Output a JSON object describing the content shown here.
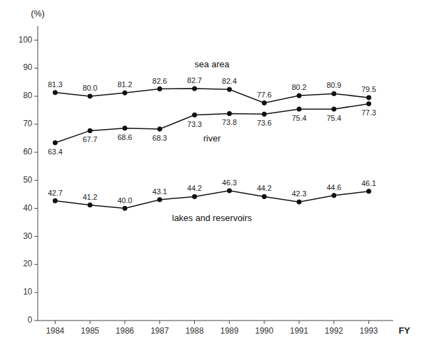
{
  "chart_data": {
    "type": "line",
    "x_label": "FY",
    "y_label": "(%)",
    "x": [
      1984,
      1985,
      1986,
      1987,
      1988,
      1989,
      1990,
      1991,
      1992,
      1993
    ],
    "xlim": [
      1983.5,
      1993.7
    ],
    "xticks": [
      1984,
      1985,
      1986,
      1987,
      1988,
      1989,
      1990,
      1991,
      1992,
      1993
    ],
    "ylim": [
      0,
      105
    ],
    "yticks": [
      0,
      10,
      20,
      30,
      40,
      50,
      60,
      70,
      80,
      90,
      100
    ],
    "grid": false,
    "data_labels": true,
    "series": [
      {
        "name": "sea area",
        "color": "#111111",
        "marker": "circle",
        "values": [
          81.3,
          80.0,
          81.2,
          82.6,
          82.7,
          82.4,
          77.6,
          80.2,
          80.9,
          79.5
        ],
        "value_labels": [
          "81.3",
          "80.0",
          "81.2",
          "82.6",
          "82.7",
          "82.4",
          "77.6",
          "80.2",
          "80.9",
          "79.5"
        ]
      },
      {
        "name": "river",
        "color": "#111111",
        "marker": "circle",
        "values": [
          63.4,
          67.7,
          68.6,
          68.3,
          73.3,
          73.8,
          73.6,
          75.4,
          75.4,
          77.3
        ],
        "value_labels": [
          "63.4",
          "67.7",
          "68.6",
          "68.3",
          "73.3",
          "73.8",
          "73.6",
          "75.4",
          "75.4",
          "77.3"
        ]
      },
      {
        "name": "lakes and reservoirs",
        "color": "#111111",
        "marker": "circle",
        "values": [
          42.7,
          41.2,
          40.0,
          43.1,
          44.2,
          46.3,
          44.2,
          42.3,
          44.6,
          46.1
        ],
        "value_labels": [
          "42.7",
          "41.2",
          "40.0",
          "43.1",
          "44.2",
          "46.3",
          "44.2",
          "42.3",
          "44.6",
          "46.1"
        ]
      }
    ]
  }
}
